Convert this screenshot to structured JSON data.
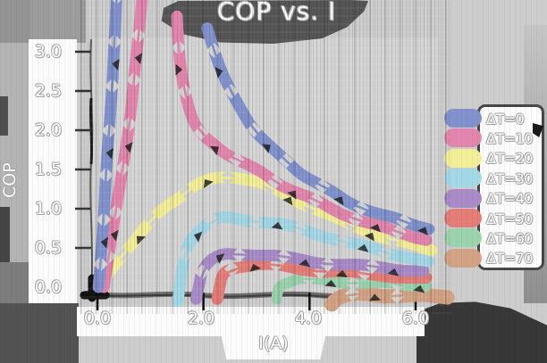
{
  "figure": {
    "title": "COP vs. I",
    "background_color": "#cdcdcd",
    "text_color": "#ffffff",
    "plot_background": "#d5d5d5"
  },
  "axes": {
    "x": {
      "label": "I(A)",
      "tick_labels": [
        "0.0",
        "2.0",
        "4.0",
        "6.0"
      ],
      "tick_values": [
        0.0,
        2.0,
        4.0,
        6.0
      ],
      "range": [
        -0.1,
        6.45
      ]
    },
    "y": {
      "label": "COP",
      "tick_labels": [
        "3.0",
        "2.5",
        "2.0",
        "1.5",
        "1.0",
        "0.5",
        "0.0"
      ],
      "tick_values": [
        3.0,
        2.5,
        2.0,
        1.5,
        1.0,
        0.5,
        0.0
      ],
      "range": [
        -0.25,
        3.35
      ]
    }
  },
  "legend": {
    "position": "right",
    "entries": [
      {
        "label": "ΔT=0",
        "color": "#8192cd"
      },
      {
        "label": "ΔT=10",
        "color": "#e286ad"
      },
      {
        "label": "ΔT=20",
        "color": "#f3ef99"
      },
      {
        "label": "ΔT=30",
        "color": "#a5d8e6"
      },
      {
        "label": "ΔT=40",
        "color": "#a98bc8"
      },
      {
        "label": "ΔT=50",
        "color": "#e57d78"
      },
      {
        "label": "ΔT=60",
        "color": "#9bd3af"
      },
      {
        "label": "ΔT=70",
        "color": "#d4a284"
      }
    ]
  },
  "chart_data": {
    "type": "line",
    "title": "COP vs. I",
    "xlabel": "I(A)",
    "ylabel": "COP",
    "xlim": [
      -0.1,
      6.45
    ],
    "ylim": [
      -0.25,
      3.35
    ],
    "grid": false,
    "legend_position": "right",
    "style": "xkcd-thick-ribbon",
    "series": [
      {
        "name": "ΔT=0",
        "color": "#8192cd",
        "width": 13,
        "segments": [
          [
            [
              0.02,
              0.0
            ],
            [
              0.1,
              0.75
            ],
            [
              0.18,
              1.55
            ],
            [
              0.25,
              2.3
            ],
            [
              0.31,
              3.0
            ],
            [
              0.38,
              3.95
            ]
          ],
          [
            [
              2.07,
              3.3
            ],
            [
              2.2,
              3.0
            ],
            [
              2.4,
              2.65
            ],
            [
              2.65,
              2.32
            ],
            [
              2.95,
              2.02
            ],
            [
              3.25,
              1.78
            ],
            [
              3.55,
              1.6
            ],
            [
              3.85,
              1.46
            ],
            [
              4.15,
              1.32
            ],
            [
              4.45,
              1.19
            ],
            [
              4.75,
              1.08
            ],
            [
              5.05,
              1.0
            ],
            [
              5.35,
              0.92
            ],
            [
              5.65,
              0.86
            ],
            [
              5.95,
              0.8
            ],
            [
              6.25,
              0.74
            ]
          ]
        ]
      },
      {
        "name": "ΔT=10",
        "color": "#e286ad",
        "width": 13,
        "segments": [
          [
            [
              0.12,
              0.0
            ],
            [
              0.28,
              0.65
            ],
            [
              0.45,
              1.4
            ],
            [
              0.6,
              2.1
            ],
            [
              0.72,
              2.8
            ],
            [
              0.82,
              3.5
            ],
            [
              0.87,
              3.95
            ]
          ],
          [
            [
              1.5,
              3.45
            ],
            [
              1.56,
              2.9
            ],
            [
              1.66,
              2.42
            ],
            [
              1.8,
              2.1
            ],
            [
              2.0,
              1.92
            ],
            [
              2.25,
              1.79
            ],
            [
              2.5,
              1.68
            ],
            [
              2.8,
              1.56
            ],
            [
              3.1,
              1.45
            ],
            [
              3.45,
              1.32
            ],
            [
              3.8,
              1.2
            ],
            [
              4.15,
              1.08
            ],
            [
              4.5,
              0.97
            ],
            [
              4.85,
              0.88
            ],
            [
              5.2,
              0.8
            ],
            [
              5.55,
              0.72
            ],
            [
              5.9,
              0.65
            ],
            [
              6.2,
              0.6
            ]
          ]
        ]
      },
      {
        "name": "ΔT=20",
        "color": "#f3ef99",
        "width": 13,
        "segments": [
          [
            [
              0.05,
              0.02
            ],
            [
              0.35,
              0.32
            ],
            [
              0.65,
              0.57
            ],
            [
              0.95,
              0.79
            ],
            [
              1.25,
              1.0
            ],
            [
              1.55,
              1.17
            ],
            [
              1.85,
              1.3
            ],
            [
              2.15,
              1.37
            ],
            [
              2.45,
              1.41
            ],
            [
              2.75,
              1.4
            ],
            [
              3.05,
              1.33
            ],
            [
              3.4,
              1.22
            ],
            [
              3.75,
              1.11
            ],
            [
              4.1,
              1.0
            ],
            [
              4.45,
              0.89
            ],
            [
              4.8,
              0.79
            ],
            [
              5.15,
              0.7
            ],
            [
              5.5,
              0.62
            ],
            [
              5.85,
              0.55
            ],
            [
              6.15,
              0.5
            ],
            [
              6.3,
              0.47
            ]
          ]
        ]
      },
      {
        "name": "ΔT=30",
        "color": "#a5d8e6",
        "width": 13,
        "segments": [
          [
            [
              1.52,
              -0.18
            ],
            [
              1.56,
              0.1
            ],
            [
              1.63,
              0.38
            ],
            [
              1.75,
              0.6
            ],
            [
              1.95,
              0.76
            ],
            [
              2.2,
              0.86
            ],
            [
              2.5,
              0.89
            ],
            [
              2.8,
              0.86
            ],
            [
              3.1,
              0.83
            ],
            [
              3.5,
              0.79
            ],
            [
              3.9,
              0.73
            ],
            [
              4.3,
              0.65
            ],
            [
              4.7,
              0.57
            ],
            [
              5.1,
              0.5
            ],
            [
              5.5,
              0.44
            ],
            [
              5.9,
              0.38
            ],
            [
              6.25,
              0.33
            ]
          ]
        ]
      },
      {
        "name": "ΔT=40",
        "color": "#a98bc8",
        "width": 13,
        "segments": [
          [
            [
              1.86,
              -0.15
            ],
            [
              1.9,
              0.05
            ],
            [
              1.98,
              0.22
            ],
            [
              2.12,
              0.34
            ],
            [
              2.35,
              0.41
            ],
            [
              2.65,
              0.43
            ],
            [
              3.0,
              0.42
            ],
            [
              3.35,
              0.39
            ],
            [
              3.75,
              0.36
            ],
            [
              4.15,
              0.32
            ],
            [
              4.55,
              0.29
            ],
            [
              4.95,
              0.27
            ],
            [
              5.35,
              0.25
            ],
            [
              5.75,
              0.23
            ],
            [
              6.15,
              0.21
            ]
          ]
        ]
      },
      {
        "name": "ΔT=50",
        "color": "#e57d78",
        "width": 13,
        "segments": [
          [
            [
              2.26,
              -0.15
            ],
            [
              2.3,
              0.02
            ],
            [
              2.38,
              0.15
            ],
            [
              2.52,
              0.24
            ],
            [
              2.75,
              0.28
            ],
            [
              3.05,
              0.29
            ],
            [
              3.4,
              0.27
            ],
            [
              3.8,
              0.24
            ],
            [
              4.2,
              0.21
            ],
            [
              4.6,
              0.19
            ],
            [
              5.0,
              0.17
            ],
            [
              5.4,
              0.15
            ],
            [
              5.8,
              0.13
            ],
            [
              6.2,
              0.12
            ]
          ]
        ]
      },
      {
        "name": "ΔT=60",
        "color": "#9bd3af",
        "width": 12,
        "segments": [
          [
            [
              3.38,
              -0.15
            ],
            [
              3.42,
              -0.02
            ],
            [
              3.5,
              0.05
            ],
            [
              3.65,
              0.09
            ],
            [
              3.9,
              0.1
            ],
            [
              4.25,
              0.09
            ],
            [
              4.65,
              0.07
            ],
            [
              5.05,
              0.05
            ],
            [
              5.45,
              0.04
            ],
            [
              5.85,
              0.02
            ],
            [
              6.2,
              0.01
            ]
          ]
        ]
      },
      {
        "name": "ΔT=70",
        "color": "#d4a284",
        "width": 16,
        "segments": [
          [
            [
              4.42,
              -0.22
            ],
            [
              4.48,
              -0.14
            ],
            [
              4.7,
              -0.1
            ],
            [
              5.0,
              -0.09
            ],
            [
              5.35,
              -0.1
            ],
            [
              5.7,
              -0.1
            ],
            [
              6.05,
              -0.11
            ],
            [
              6.35,
              -0.12
            ],
            [
              6.6,
              -0.13
            ]
          ]
        ]
      }
    ]
  }
}
